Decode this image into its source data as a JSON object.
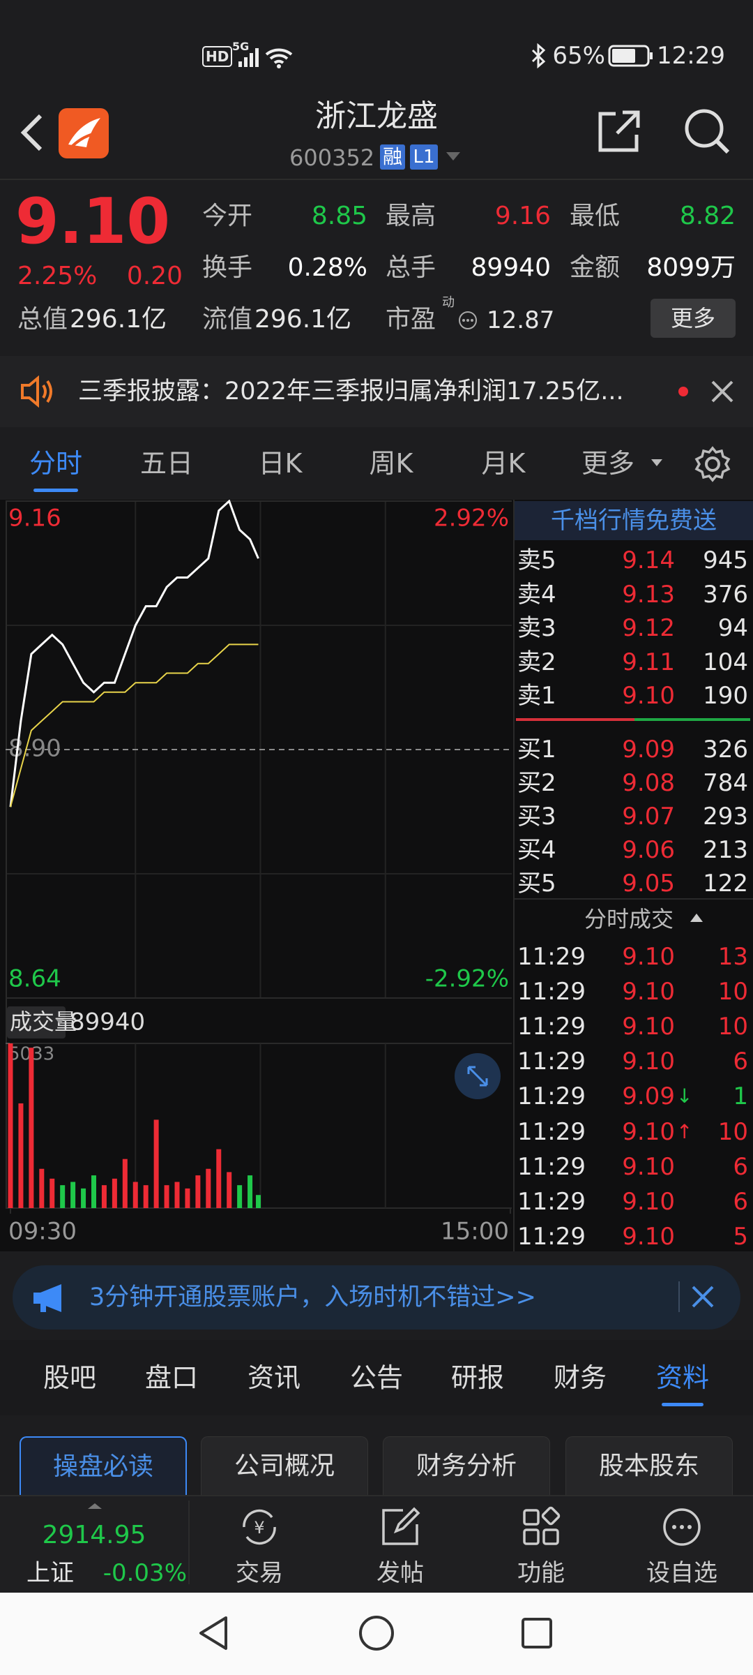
{
  "status_bar": {
    "hd": "HD",
    "network": "5G",
    "battery": "65%",
    "time": "12:29"
  },
  "header": {
    "title": "浙江龙盛",
    "code": "600352",
    "badges": [
      "融",
      "L1"
    ]
  },
  "quote": {
    "price": "9.10",
    "change_pct": "2.25%",
    "change": "0.20",
    "stats": [
      {
        "label": "今开",
        "value": "8.85",
        "color": "#1fc84a"
      },
      {
        "label": "最高",
        "value": "9.16",
        "color": "#ee2b35"
      },
      {
        "label": "最低",
        "value": "8.82",
        "color": "#1fc84a"
      },
      {
        "label": "换手",
        "value": "0.28%",
        "color": "#ffffff"
      },
      {
        "label": "总手",
        "value": "89940",
        "color": "#ffffff"
      },
      {
        "label": "金额",
        "value": "8099万",
        "color": "#ffffff"
      }
    ],
    "market_value": {
      "label": "总值",
      "value": "296.1亿"
    },
    "float_value": {
      "label": "流值",
      "value": "296.1亿"
    },
    "pe": {
      "label": "市盈",
      "tag": "动",
      "value": "12.87"
    },
    "more": "更多"
  },
  "news": {
    "text": "三季报披露：2022年三季报归属净利润17.25亿..."
  },
  "tabs": {
    "items": [
      "分时",
      "五日",
      "日K",
      "周K",
      "月K",
      "更多"
    ],
    "active": 0
  },
  "chart_data": {
    "type": "line",
    "x": [
      "09:30",
      "09:35",
      "09:40",
      "09:45",
      "09:50",
      "09:55",
      "10:00",
      "10:05",
      "10:10",
      "10:15",
      "10:20",
      "10:25",
      "10:30",
      "10:35",
      "10:40",
      "10:45",
      "10:50",
      "10:55",
      "11:00",
      "11:05",
      "11:10",
      "11:15",
      "11:20",
      "11:25",
      "11:29"
    ],
    "xlim": [
      "09:30",
      "15:00"
    ],
    "xticks": [
      "09:30",
      "15:00"
    ],
    "ylim": [
      8.64,
      9.16
    ],
    "yticks": [
      9.16,
      {
        "value": 8.9,
        "label": "8.90"
      },
      8.64
    ],
    "y2lim": [
      -2.92,
      2.92
    ],
    "y2ticks": [
      {
        "value": 2.92,
        "label": "2.92%"
      },
      {
        "value": -2.92,
        "label": "-2.92%"
      }
    ],
    "up_color": "#ee2b35",
    "down_color": "#1fc84a",
    "series": [
      {
        "color": "#ffffff",
        "values": [
          8.84,
          8.93,
          9.0,
          9.01,
          9.02,
          9.01,
          8.99,
          8.97,
          8.96,
          8.97,
          8.97,
          9.0,
          9.03,
          9.05,
          9.05,
          9.07,
          9.08,
          9.08,
          9.09,
          9.1,
          9.15,
          9.16,
          9.13,
          9.12,
          9.1
        ]
      },
      {
        "color": "#e8d44a",
        "values": [
          8.84,
          8.88,
          8.92,
          8.93,
          8.94,
          8.95,
          8.95,
          8.95,
          8.95,
          8.96,
          8.96,
          8.96,
          8.97,
          8.97,
          8.97,
          8.98,
          8.98,
          8.98,
          8.99,
          8.99,
          9.0,
          9.01,
          9.01,
          9.01,
          9.01
        ]
      }
    ],
    "volume": {
      "label": "成交量",
      "total": 89940,
      "ylim": [
        0,
        5033
      ],
      "yticks": [
        5033
      ],
      "values": [
        5033,
        3200,
        4900,
        1200,
        900,
        700,
        800,
        600,
        1000,
        700,
        900,
        1500,
        800,
        700,
        2700,
        700,
        800,
        600,
        1000,
        1200,
        1800,
        1100,
        700,
        1000,
        400
      ]
    }
  },
  "order_book": {
    "title": "千档行情免费送",
    "asks": [
      [
        "卖5",
        "9.14",
        "945"
      ],
      [
        "卖4",
        "9.13",
        "376"
      ],
      [
        "卖3",
        "9.12",
        "94"
      ],
      [
        "卖2",
        "9.11",
        "104"
      ],
      [
        "卖1",
        "9.10",
        "190"
      ]
    ],
    "bids": [
      [
        "买1",
        "9.09",
        "326"
      ],
      [
        "买2",
        "9.08",
        "784"
      ],
      [
        "买3",
        "9.07",
        "293"
      ],
      [
        "买4",
        "9.06",
        "213"
      ],
      [
        "买5",
        "9.05",
        "122"
      ]
    ]
  },
  "trades": {
    "title": "分时成交",
    "rows": [
      {
        "time": "11:29",
        "price": "9.10",
        "volume": "13",
        "color": "#ee2b35"
      },
      {
        "time": "11:29",
        "price": "9.10",
        "volume": "10",
        "color": "#ee2b35"
      },
      {
        "time": "11:29",
        "price": "9.10",
        "volume": "10",
        "color": "#ee2b35"
      },
      {
        "time": "11:29",
        "price": "9.10",
        "volume": "6",
        "color": "#ee2b35"
      },
      {
        "time": "11:29",
        "price": "9.09",
        "arrow": "↓",
        "volume": "1",
        "color": "#1fc84a"
      },
      {
        "time": "11:29",
        "price": "9.10",
        "arrow": "↑",
        "volume": "10",
        "color": "#ee2b35"
      },
      {
        "time": "11:29",
        "price": "9.10",
        "volume": "6",
        "color": "#ee2b35"
      },
      {
        "time": "11:29",
        "price": "9.10",
        "volume": "6",
        "color": "#ee2b35"
      },
      {
        "time": "11:29",
        "price": "9.10",
        "volume": "5",
        "color": "#ee2b35"
      }
    ]
  },
  "promo": {
    "text": "3分钟开通股票账户，入场时机不错过>>"
  },
  "sections": {
    "items": [
      "股吧",
      "盘口",
      "资讯",
      "公告",
      "研报",
      "财务",
      "资料"
    ],
    "active": 6
  },
  "subtabs": {
    "items": [
      "操盘必读",
      "公司概况",
      "财务分析",
      "股本股东"
    ],
    "active": 0
  },
  "index": {
    "value": "2914.95",
    "name": "上证",
    "change": "-0.03%"
  },
  "nav": {
    "items": [
      "交易",
      "发帖",
      "功能",
      "设自选"
    ]
  }
}
